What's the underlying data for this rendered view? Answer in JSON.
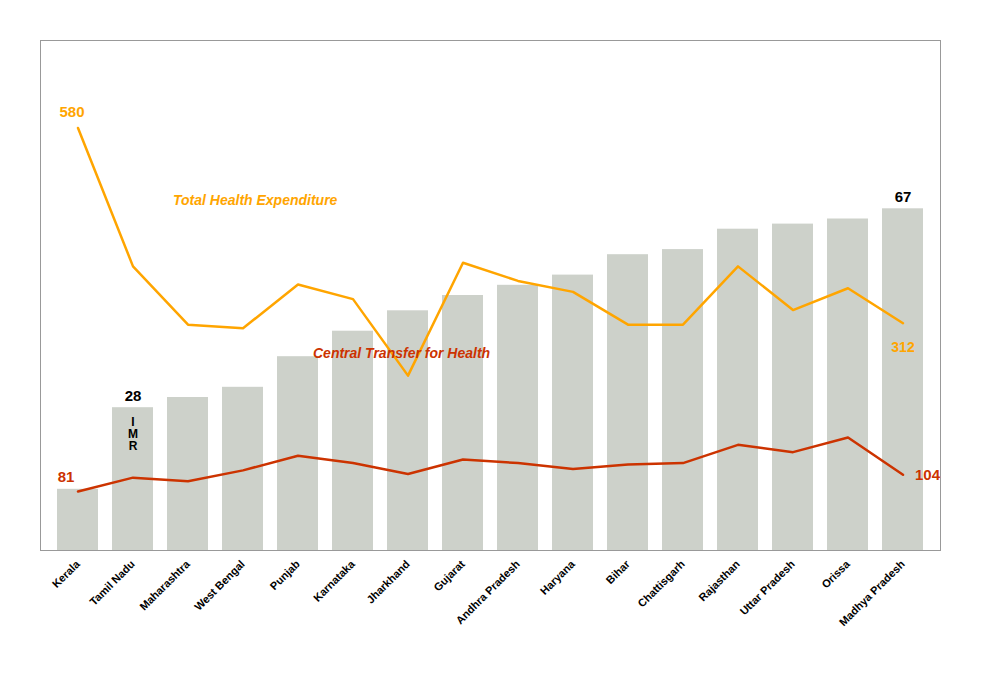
{
  "chart_data": {
    "type": "bar",
    "categories": [
      "Kerala",
      "Tamil Nadu",
      "Maharashtra",
      "West Bengal",
      "Punjab",
      "Karnataka",
      "Jharkhand",
      "Gujarat",
      "Andhra Pradesh",
      "Haryana",
      "Bihar",
      "Chattisgarh",
      "Rajasthan",
      "Uttar Pradesh",
      "Orissa",
      "Madhya Pradesh"
    ],
    "series": [
      {
        "type": "bar",
        "color": "#cdd1ca",
        "values": [
          12,
          28,
          30,
          32,
          38,
          43,
          47,
          50,
          52,
          54,
          58,
          59,
          63,
          64,
          65,
          67
        ]
      },
      {
        "name": "Total Health Expenditure",
        "type": "line",
        "axis": "y2",
        "color": "#FFA500",
        "values": [
          580,
          390,
          310,
          305,
          365,
          345,
          240,
          395,
          370,
          355,
          310,
          310,
          390,
          330,
          360,
          312
        ]
      },
      {
        "name": "Central Transfer for Health",
        "type": "line",
        "axis": "y2",
        "color": "#CC3300",
        "values": [
          81,
          100,
          95,
          110,
          130,
          120,
          105,
          125,
          120,
          112,
          118,
          120,
          145,
          135,
          155,
          104
        ]
      }
    ],
    "ylim": [
      0,
      100
    ],
    "y2lim": [
      0,
      700
    ],
    "tick_labels": "x",
    "grid": false,
    "legend": false,
    "annotations": [
      {
        "text": "580",
        "series": 1,
        "x": "Kerala"
      },
      {
        "series": 1,
        "x": "Maharashtra",
        "y": 480
      },
      {
        "text": "312",
        "series": 1,
        "x": "Madhya Pradesh"
      },
      {
        "text": "81",
        "series": 2,
        "x": "Kerala"
      },
      {
        "series": 2,
        "x": "Punjab",
        "y": 270
      },
      {
        "text": "104",
        "series": 2,
        "x": "Madhya Pradesh"
      },
      {
        "text": "28",
        "series": 0,
        "x": "Tamil Nadu",
        "color": "black"
      },
      {
        "text": "I\nM\nR",
        "series": 0,
        "x": "Tamil Nadu",
        "color": "black"
      },
      {
        "text": "67",
        "series": 0,
        "x": "Madhya Pradesh",
        "color": "black"
      }
    ]
  }
}
